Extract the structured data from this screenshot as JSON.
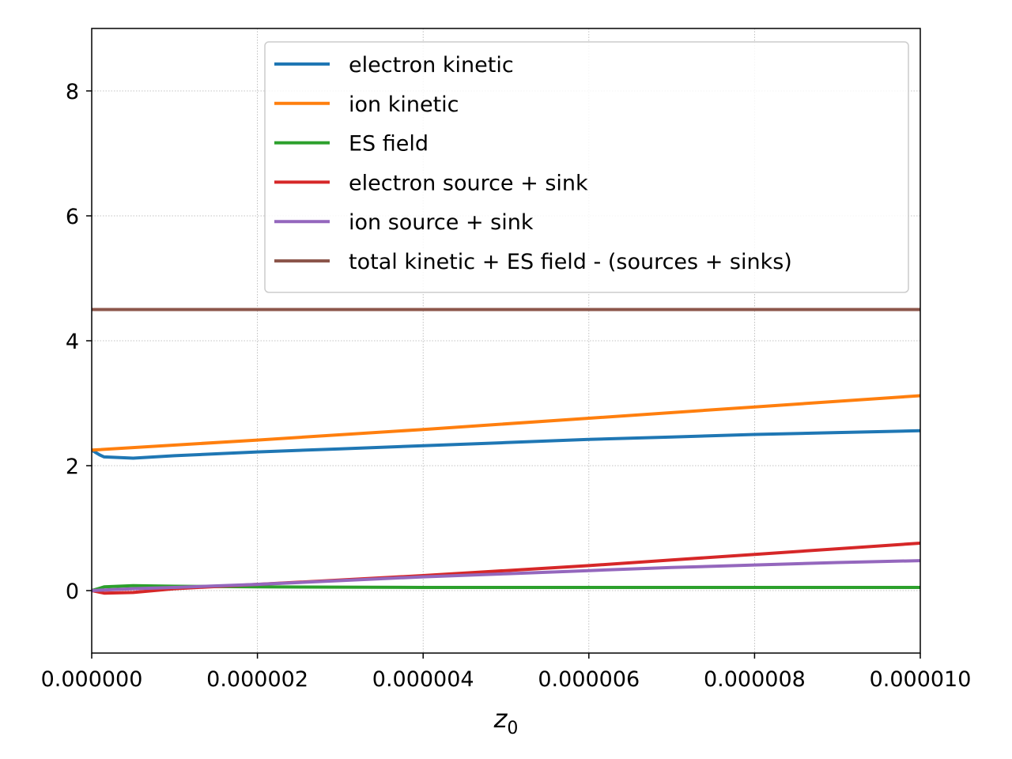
{
  "chart_data": {
    "type": "line",
    "xlabel": "z",
    "xlabel_sub": "0",
    "ylabel": "",
    "xlim": [
      0,
      1e-05
    ],
    "ylim": [
      -1,
      9
    ],
    "x_ticks": [
      0,
      2e-06,
      4e-06,
      6e-06,
      8e-06,
      1e-05
    ],
    "x_tick_labels": [
      "0.000000",
      "0.000002",
      "0.000004",
      "0.000006",
      "0.000008",
      "0.000010"
    ],
    "y_ticks": [
      0,
      2,
      4,
      6,
      8
    ],
    "y_tick_labels": [
      "0",
      "2",
      "4",
      "6",
      "8"
    ],
    "grid": true,
    "legend_position": "top-right",
    "series": [
      {
        "name": "electron kinetic",
        "color": "#1f77b4",
        "x": [
          0,
          1e-07,
          1.5e-07,
          5e-07,
          1e-06,
          2e-06,
          3e-06,
          4e-06,
          5e-06,
          6e-06,
          7e-06,
          8e-06,
          9e-06,
          1e-05
        ],
        "y": [
          2.25,
          2.17,
          2.14,
          2.12,
          2.16,
          2.22,
          2.27,
          2.32,
          2.37,
          2.42,
          2.46,
          2.5,
          2.53,
          2.56
        ]
      },
      {
        "name": "ion kinetic",
        "color": "#ff7f0e",
        "x": [
          0,
          2e-06,
          4e-06,
          6e-06,
          8e-06,
          1e-05
        ],
        "y": [
          2.25,
          2.41,
          2.58,
          2.76,
          2.94,
          3.12
        ]
      },
      {
        "name": "ES field",
        "color": "#2ca02c",
        "x": [
          0,
          1.5e-07,
          5e-07,
          1e-06,
          2e-06,
          4e-06,
          6e-06,
          8e-06,
          1e-05
        ],
        "y": [
          0,
          0.06,
          0.08,
          0.07,
          0.06,
          0.05,
          0.05,
          0.05,
          0.05
        ]
      },
      {
        "name": "electron source + sink",
        "color": "#d62728",
        "x": [
          0,
          1.5e-07,
          5e-07,
          1e-06,
          2e-06,
          3e-06,
          4e-06,
          5e-06,
          6e-06,
          7e-06,
          8e-06,
          9e-06,
          1e-05
        ],
        "y": [
          0,
          -0.04,
          -0.03,
          0.03,
          0.1,
          0.17,
          0.24,
          0.32,
          0.4,
          0.49,
          0.58,
          0.67,
          0.76
        ]
      },
      {
        "name": "ion source + sink",
        "color": "#9467bd",
        "x": [
          0,
          1.5e-07,
          5e-07,
          1e-06,
          2e-06,
          3e-06,
          4e-06,
          5e-06,
          6e-06,
          7e-06,
          8e-06,
          9e-06,
          1e-05
        ],
        "y": [
          0,
          0.01,
          0.03,
          0.05,
          0.1,
          0.16,
          0.22,
          0.27,
          0.32,
          0.37,
          0.41,
          0.45,
          0.48
        ]
      },
      {
        "name": "total kinetic + ES field - (sources + sinks)",
        "color": "#8c564b",
        "x": [
          0,
          1e-05
        ],
        "y": [
          4.5,
          4.5
        ]
      }
    ]
  }
}
